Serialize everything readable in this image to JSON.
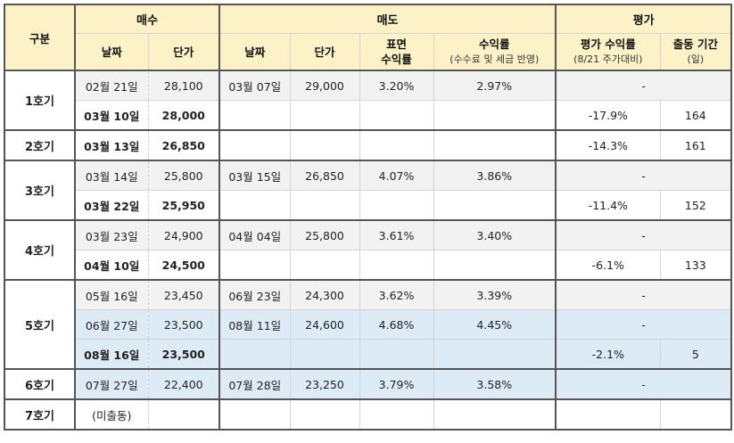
{
  "header": {
    "group": "구분",
    "buy": "매수",
    "sell": "매도",
    "eval": "평가",
    "buy_date": "날짜",
    "buy_price": "단가",
    "sell_date": "날짜",
    "sell_price": "단가",
    "surface_return_l1": "표면",
    "surface_return_l2": "수익률",
    "return_l1": "수익률",
    "return_l2": "(수수료 및 세금 반영)",
    "eval_return_l1": "평가 수익률",
    "eval_return_l2": "(8/21 주가대비)",
    "period_l1": "출동 기간",
    "period_l2": "(일)"
  },
  "groups": [
    {
      "label": "1호기",
      "rows": [
        {
          "buy_date": "02월 21일",
          "buy_price": "28,100",
          "sell_date": "03월 07일",
          "sell_price": "29,000",
          "surface": "3.20%",
          "ret": "2.97%",
          "eval": "-",
          "days": ""
        },
        {
          "buy_date": "03월 10일",
          "buy_price": "28,000",
          "sell_date": "",
          "sell_price": "",
          "surface": "",
          "ret": "",
          "eval": "-17.9%",
          "days": "164"
        }
      ]
    },
    {
      "label": "2호기",
      "rows": [
        {
          "buy_date": "03월 13일",
          "buy_price": "26,850",
          "sell_date": "",
          "sell_price": "",
          "surface": "",
          "ret": "",
          "eval": "-14.3%",
          "days": "161"
        }
      ]
    },
    {
      "label": "3호기",
      "rows": [
        {
          "buy_date": "03월 14일",
          "buy_price": "25,800",
          "sell_date": "03월 15일",
          "sell_price": "26,850",
          "surface": "4.07%",
          "ret": "3.86%",
          "eval": "-",
          "days": ""
        },
        {
          "buy_date": "03월 22일",
          "buy_price": "25,950",
          "sell_date": "",
          "sell_price": "",
          "surface": "",
          "ret": "",
          "eval": "-11.4%",
          "days": "152"
        }
      ]
    },
    {
      "label": "4호기",
      "rows": [
        {
          "buy_date": "03월 23일",
          "buy_price": "24,900",
          "sell_date": "04월 04일",
          "sell_price": "25,800",
          "surface": "3.61%",
          "ret": "3.40%",
          "eval": "-",
          "days": ""
        },
        {
          "buy_date": "04월 10일",
          "buy_price": "24,500",
          "sell_date": "",
          "sell_price": "",
          "surface": "",
          "ret": "",
          "eval": "-6.1%",
          "days": "133"
        }
      ]
    },
    {
      "label": "5호기",
      "rows": [
        {
          "buy_date": "05월 16일",
          "buy_price": "23,450",
          "sell_date": "06월 23일",
          "sell_price": "24,300",
          "surface": "3.62%",
          "ret": "3.39%",
          "eval": "-",
          "days": ""
        },
        {
          "buy_date": "06월 27일",
          "buy_price": "23,500",
          "sell_date": "08월 11일",
          "sell_price": "24,600",
          "surface": "4.68%",
          "ret": "4.45%",
          "eval": "-",
          "days": ""
        },
        {
          "buy_date": "08월 16일",
          "buy_price": "23,500",
          "sell_date": "",
          "sell_price": "",
          "surface": "",
          "ret": "",
          "eval": "-2.1%",
          "days": "5"
        }
      ]
    },
    {
      "label": "6호기",
      "rows": [
        {
          "buy_date": "07월 27일",
          "buy_price": "22,400",
          "sell_date": "07월 28일",
          "sell_price": "23,250",
          "surface": "3.79%",
          "ret": "3.58%",
          "eval": "-",
          "days": ""
        }
      ]
    },
    {
      "label": "7호기",
      "rows": [
        {
          "buy_date": "(미출동)",
          "buy_price": "",
          "sell_date": "",
          "sell_price": "",
          "surface": "",
          "ret": "",
          "eval": "",
          "days": ""
        }
      ]
    }
  ],
  "colors": {
    "header_bg": "#fdf2c7",
    "grey_row": "#f2f2f2",
    "blue_row": "#ddebf7"
  }
}
